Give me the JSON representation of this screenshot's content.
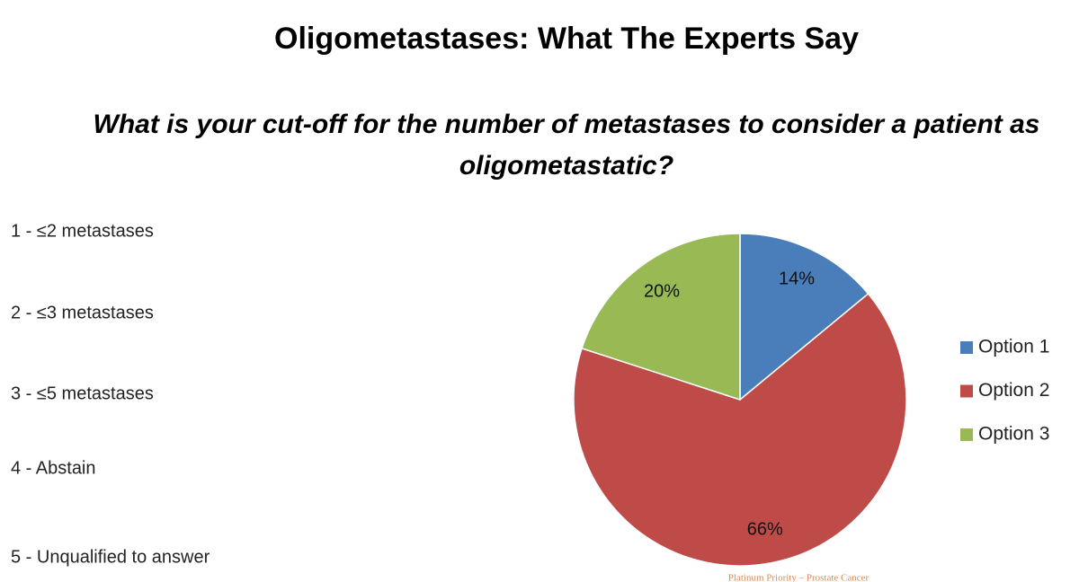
{
  "chart_data": {
    "type": "pie",
    "title": "Oligometastases:  What The Experts Say",
    "subtitle": "What is your cut-off for the number of metastases to consider a patient as oligometastatic?",
    "categories": [
      "Option 1",
      "Option 2",
      "Option 3"
    ],
    "values": [
      14,
      66,
      20
    ],
    "value_labels": [
      "14%",
      "66%",
      "20%"
    ],
    "colors": [
      "#4a7ebb",
      "#be4b48",
      "#98b954"
    ],
    "legend": "right"
  },
  "options": [
    "1 - ≤2 metastases",
    "2 - ≤3 metastases",
    "3 - ≤5 metastases",
    "4 - Abstain",
    "5 - Unqualified to answer"
  ],
  "footer": "Platinum Priority – Prostate Cancer"
}
